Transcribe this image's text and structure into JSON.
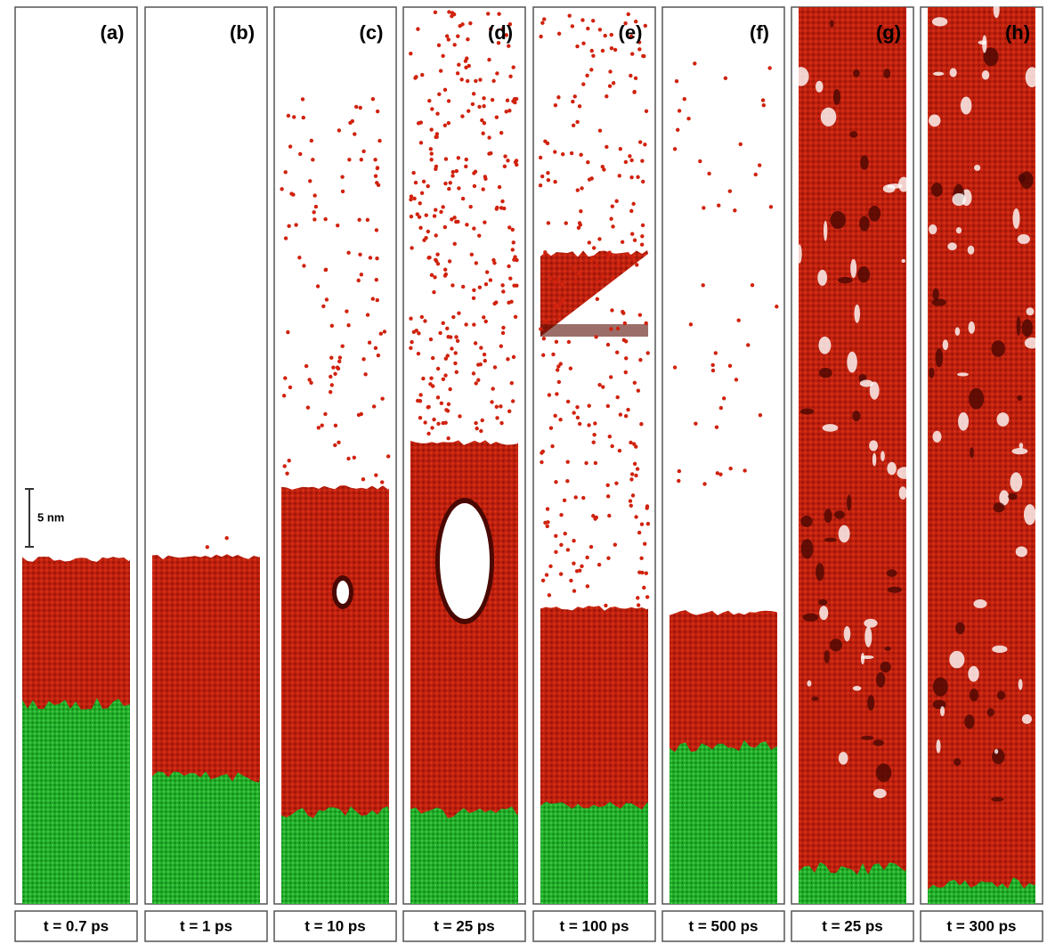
{
  "panels": [
    {
      "label": "(a)",
      "time": "t = 0.7 ps"
    },
    {
      "label": "(b)",
      "time": "t = 1 ps"
    },
    {
      "label": "(c)",
      "time": "t = 10 ps"
    },
    {
      "label": "(d)",
      "time": "t = 25 ps"
    },
    {
      "label": "(e)",
      "time": "t = 100 ps"
    },
    {
      "label": "(f)",
      "time": "t = 500 ps"
    },
    {
      "label": "(g)",
      "time": "t = 25 ps"
    },
    {
      "label": "(h)",
      "time": "t = 300 ps"
    }
  ],
  "scale_bar": "5 nm"
}
